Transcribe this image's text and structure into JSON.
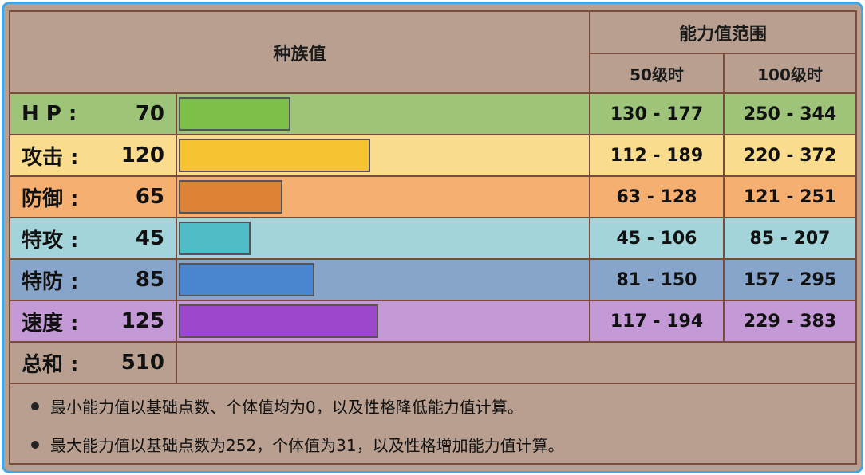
{
  "header": {
    "base_stats_title": "种族值",
    "range_title": "能力值范围",
    "level50": "50级时",
    "level100": "100级时"
  },
  "rows": [
    {
      "label": "H P :",
      "value": "70",
      "bar_fraction": 0.28,
      "r50": "130 - 177",
      "r100": "250 - 344",
      "bg": "#9ec47a",
      "bar": "#7cc04a"
    },
    {
      "label": "攻击 :",
      "value": "120",
      "bar_fraction": 0.48,
      "r50": "112 - 189",
      "r100": "220 - 372",
      "bg": "#f9dc8e",
      "bar": "#f6c332"
    },
    {
      "label": "防御 :",
      "value": "65",
      "bar_fraction": 0.26,
      "r50": "63 - 128",
      "r100": "121 - 251",
      "bg": "#f5b071",
      "bar": "#de8236"
    },
    {
      "label": "特攻 :",
      "value": "45",
      "bar_fraction": 0.18,
      "r50": "45 - 106",
      "r100": "85 - 207",
      "bg": "#a2d4d9",
      "bar": "#50bcc8"
    },
    {
      "label": "特防 :",
      "value": "85",
      "bar_fraction": 0.34,
      "r50": "81 - 150",
      "r100": "157 - 295",
      "bg": "#87a5cb",
      "bar": "#4a86cf"
    },
    {
      "label": "速度 :",
      "value": "125",
      "bar_fraction": 0.5,
      "r50": "117 - 194",
      "r100": "229 - 383",
      "bg": "#c49ad6",
      "bar": "#9c48cc"
    }
  ],
  "total": {
    "label": "总和 :",
    "value": "510"
  },
  "notes": [
    "最小能力值以基础点数、个体值均为0，以及性格降低能力值计算。",
    "最大能力值以基础点数为252，个体值为31，以及性格增加能力值计算。"
  ]
}
